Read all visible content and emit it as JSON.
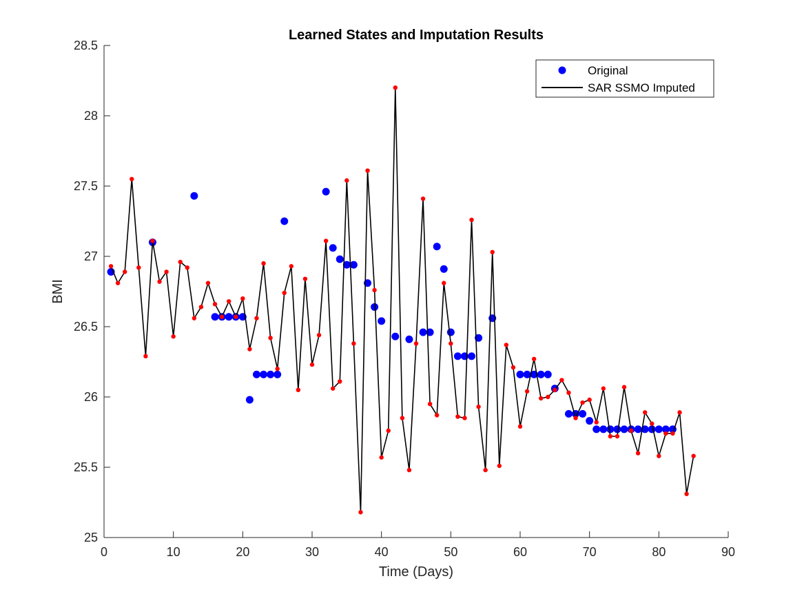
{
  "chart_data": {
    "type": "line",
    "title": "Learned States and Imputation Results",
    "xlabel": "Time (Days)",
    "ylabel": "BMI",
    "xlim": [
      0,
      90
    ],
    "ylim": [
      25,
      28.5
    ],
    "xticks": [
      0,
      10,
      20,
      30,
      40,
      50,
      60,
      70,
      80,
      90
    ],
    "yticks": [
      25,
      25.5,
      26,
      26.5,
      27,
      27.5,
      28,
      28.5
    ],
    "xtick_labels": [
      "0",
      "10",
      "20",
      "30",
      "40",
      "50",
      "60",
      "70",
      "80",
      "90"
    ],
    "ytick_labels": [
      "25",
      "25.5",
      "26",
      "26.5",
      "27",
      "27.5",
      "28",
      "28.5"
    ],
    "legend_position": "top-right",
    "colors": {
      "original": "#0000ff",
      "imputed_line": "#000000",
      "imputed_points": "#ff0000"
    },
    "series": [
      {
        "name": "Original",
        "style": "markers",
        "x": [
          1,
          7,
          13,
          16,
          17,
          18,
          19,
          20,
          21,
          22,
          23,
          24,
          25,
          26,
          32,
          33,
          34,
          35,
          36,
          38,
          39,
          40,
          42,
          44,
          46,
          47,
          48,
          49,
          50,
          51,
          52,
          53,
          54,
          56,
          60,
          61,
          62,
          63,
          64,
          65,
          67,
          68,
          69,
          70,
          71,
          72,
          73,
          74,
          75,
          76,
          77,
          78,
          79,
          80,
          81,
          82
        ],
        "y": [
          26.89,
          27.1,
          27.43,
          26.57,
          26.57,
          26.57,
          26.57,
          26.57,
          25.98,
          26.16,
          26.16,
          26.16,
          26.16,
          27.25,
          27.46,
          27.06,
          26.98,
          26.94,
          26.94,
          26.81,
          26.64,
          26.54,
          26.43,
          26.41,
          26.46,
          26.46,
          27.07,
          26.91,
          26.46,
          26.29,
          26.29,
          26.29,
          26.42,
          26.56,
          26.16,
          26.16,
          26.16,
          26.16,
          26.16,
          26.06,
          25.88,
          25.88,
          25.88,
          25.83,
          25.77,
          25.77,
          25.77,
          25.77,
          25.77,
          25.77,
          25.77,
          25.77,
          25.77,
          25.77,
          25.77,
          25.77
        ]
      },
      {
        "name": "SAR SSMO Imputed",
        "style": "line-with-points",
        "x": [
          1,
          2,
          3,
          4,
          5,
          6,
          7,
          8,
          9,
          10,
          11,
          12,
          13,
          14,
          15,
          16,
          17,
          18,
          19,
          20,
          21,
          22,
          23,
          24,
          25,
          26,
          27,
          28,
          29,
          30,
          31,
          32,
          33,
          34,
          35,
          36,
          37,
          38,
          39,
          40,
          41,
          42,
          43,
          44,
          45,
          46,
          47,
          48,
          49,
          50,
          51,
          52,
          53,
          54,
          55,
          56,
          57,
          58,
          59,
          60,
          61,
          62,
          63,
          64,
          65,
          66,
          67,
          68,
          69,
          70,
          71,
          72,
          73,
          74,
          75,
          76,
          77,
          78,
          79,
          80,
          81,
          82,
          83,
          84,
          85
        ],
        "y": [
          26.93,
          26.81,
          26.89,
          27.55,
          26.92,
          26.29,
          27.11,
          26.82,
          26.89,
          26.43,
          26.96,
          26.92,
          26.56,
          26.64,
          26.81,
          26.66,
          26.57,
          26.68,
          26.57,
          26.7,
          26.34,
          26.56,
          26.95,
          26.42,
          26.2,
          26.74,
          26.93,
          26.05,
          26.84,
          26.23,
          26.44,
          27.11,
          26.06,
          26.11,
          27.54,
          26.38,
          25.18,
          27.61,
          26.76,
          25.57,
          25.76,
          28.2,
          25.85,
          25.48,
          26.38,
          27.41,
          25.95,
          25.87,
          26.81,
          26.38,
          25.86,
          25.85,
          27.26,
          25.93,
          25.48,
          27.03,
          25.51,
          26.37,
          26.21,
          25.79,
          26.04,
          26.27,
          25.99,
          26.0,
          26.05,
          26.12,
          26.03,
          25.85,
          25.96,
          25.98,
          25.82,
          26.06,
          25.72,
          25.72,
          26.07,
          25.76,
          25.6,
          25.89,
          25.81,
          25.58,
          25.74,
          25.74,
          25.89,
          25.31,
          25.58
        ]
      }
    ]
  }
}
